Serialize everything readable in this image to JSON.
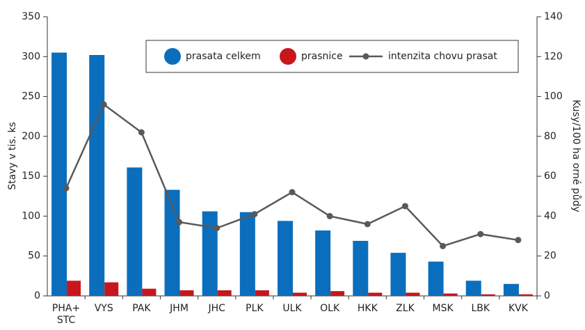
{
  "chart_data": {
    "type": "bar_line",
    "y_label": "Stavy v tis. ks",
    "y2_label": "Kusy/100 ha orné půdy",
    "categories": [
      "PHA+\nSTC",
      "VYS",
      "PAK",
      "JHM",
      "JHC",
      "PLK",
      "ULK",
      "OLK",
      "HKK",
      "ZLK",
      "MSK",
      "LBK",
      "KVK"
    ],
    "series": [
      {
        "name": "prasata celkem",
        "color": "#0a6ebd",
        "kind": "bar",
        "values": [
          305,
          302,
          161,
          133,
          106,
          105,
          94,
          82,
          69,
          54,
          43,
          19,
          15
        ]
      },
      {
        "name": "prasnice",
        "color": "#c8161d",
        "kind": "bar",
        "values": [
          19,
          17,
          9,
          7,
          7,
          7,
          4,
          6,
          4,
          4,
          3,
          2,
          2
        ]
      },
      {
        "name": "intenzita chovu prasat",
        "color": "#595959",
        "kind": "line",
        "axis": "y2",
        "values": [
          54,
          96,
          82,
          37,
          34,
          41,
          52,
          40,
          36,
          45,
          25,
          31,
          28
        ]
      }
    ],
    "ylim": [
      0,
      350
    ],
    "yticks": [
      0,
      50,
      100,
      150,
      200,
      250,
      300,
      350
    ],
    "y2lim": [
      0,
      140
    ],
    "y2ticks": [
      0,
      20,
      40,
      60,
      80,
      100,
      120,
      140
    ],
    "legend": "top-right"
  }
}
